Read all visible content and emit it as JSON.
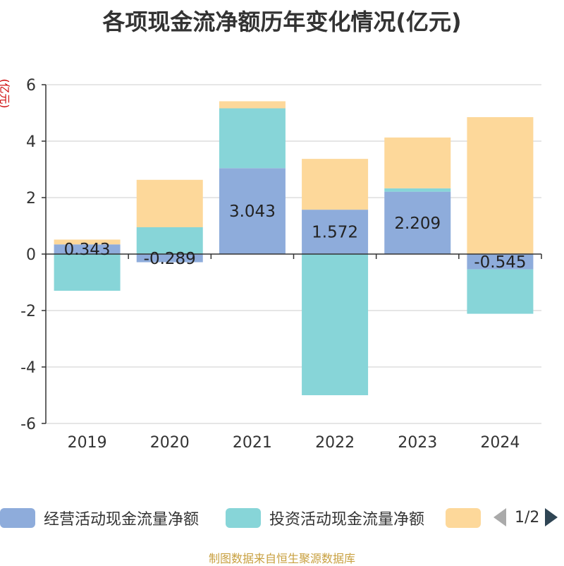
{
  "chart_data": {
    "type": "bar",
    "stacked": true,
    "title": "各项现金流净额历年变化情况(亿元)",
    "ylabel": "(亿元)",
    "categories": [
      "2019",
      "2020",
      "2021",
      "2022",
      "2023",
      "2024"
    ],
    "ylim": [
      -6,
      6
    ],
    "yticks": [
      6,
      4,
      2,
      0,
      -2,
      -4,
      -6
    ],
    "grid": true,
    "series": [
      {
        "name": "经营活动现金流量净额",
        "color": "#8eacdb",
        "values": [
          0.343,
          -0.289,
          3.043,
          1.572,
          2.209,
          -0.545
        ],
        "labels": [
          "0.343",
          "-0.289",
          "3.043",
          "1.572",
          "2.209",
          "-0.545"
        ]
      },
      {
        "name": "投资活动现金流量净额",
        "color": "#87d5d8",
        "values": [
          -1.3,
          0.95,
          2.12,
          -5.0,
          0.12,
          -1.57
        ]
      },
      {
        "name": "",
        "color": "#fdd89a",
        "values": [
          0.17,
          1.68,
          0.25,
          1.8,
          1.8,
          4.85
        ]
      }
    ]
  },
  "legend": {
    "items": [
      {
        "label": "经营活动现金流量净额",
        "color": "#8eacdb"
      },
      {
        "label": "投资活动现金流量净额",
        "color": "#87d5d8"
      },
      {
        "label": "",
        "color": "#fdd89a"
      }
    ],
    "page": "1/2"
  },
  "source": "制图数据来自恒生聚源数据库"
}
